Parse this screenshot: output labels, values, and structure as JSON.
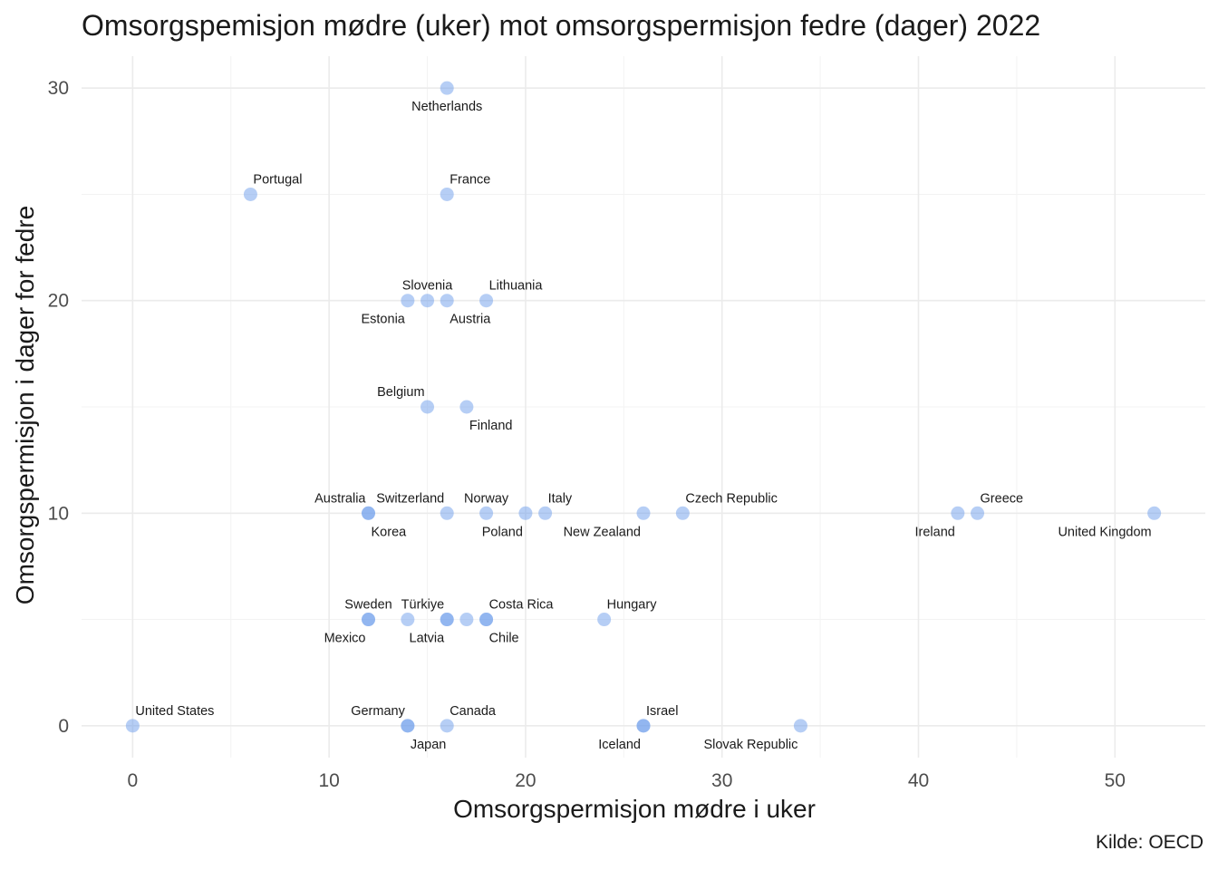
{
  "chart_data": {
    "type": "scatter",
    "title": "Omsorgspemisjon mødre (uker) mot omsorgspermisjon fedre (dager) 2022",
    "xlabel": "Omsorgspermisjon mødre i uker",
    "ylabel": "Omsorgspermisjon i dager for fedre",
    "caption": "Kilde: OECD",
    "xlim": [
      -2.6,
      54.6
    ],
    "ylim": [
      -1.5,
      31.5
    ],
    "xticks": [
      0,
      10,
      20,
      30,
      40,
      50
    ],
    "yticks": [
      0,
      10,
      20,
      30
    ],
    "grid": true,
    "point_color": "#6d9eeb",
    "points": [
      {
        "label": "Netherlands",
        "x": 16,
        "y": 30,
        "pos": "below"
      },
      {
        "label": "Portugal",
        "x": 6,
        "y": 25,
        "pos": "above-right"
      },
      {
        "label": "France",
        "x": 16,
        "y": 25,
        "pos": "above-right"
      },
      {
        "label": "Slovenia",
        "x": 15,
        "y": 20,
        "pos": "above"
      },
      {
        "label": "Estonia",
        "x": 14,
        "y": 20,
        "pos": "below-left"
      },
      {
        "label": "Austria",
        "x": 16,
        "y": 20,
        "pos": "below-right"
      },
      {
        "label": "Lithuania",
        "x": 18,
        "y": 20,
        "pos": "above-right"
      },
      {
        "label": "Belgium",
        "x": 15,
        "y": 15,
        "pos": "above-left"
      },
      {
        "label": "Finland",
        "x": 17,
        "y": 15,
        "pos": "below-right"
      },
      {
        "label": "Australia",
        "x": 12,
        "y": 10,
        "pos": "above-left"
      },
      {
        "label": "Korea",
        "x": 12,
        "y": 10,
        "pos": "below-right"
      },
      {
        "label": "Switzerland",
        "x": 16,
        "y": 10,
        "pos": "above-left"
      },
      {
        "label": "Norway",
        "x": 18,
        "y": 10,
        "pos": "above"
      },
      {
        "label": "Poland",
        "x": 20,
        "y": 10,
        "pos": "below-left"
      },
      {
        "label": "Italy",
        "x": 21,
        "y": 10,
        "pos": "above-right"
      },
      {
        "label": "New Zealand",
        "x": 26,
        "y": 10,
        "pos": "below-left"
      },
      {
        "label": "Czech Republic",
        "x": 28,
        "y": 10,
        "pos": "above-right"
      },
      {
        "label": "Ireland",
        "x": 42,
        "y": 10,
        "pos": "below-left"
      },
      {
        "label": "Greece",
        "x": 43,
        "y": 10,
        "pos": "above-right"
      },
      {
        "label": "United Kingdom",
        "x": 52,
        "y": 10,
        "pos": "below-left"
      },
      {
        "label": "Sweden",
        "x": 12,
        "y": 5,
        "pos": "above"
      },
      {
        "label": "Mexico",
        "x": 12,
        "y": 5,
        "pos": "below-left"
      },
      {
        "label": "",
        "x": 14,
        "y": 5,
        "pos": "none"
      },
      {
        "label": "Türkiye",
        "x": 16,
        "y": 5,
        "pos": "above-left"
      },
      {
        "label": "Latvia",
        "x": 16,
        "y": 5,
        "pos": "below-left"
      },
      {
        "label": "",
        "x": 17,
        "y": 5,
        "pos": "none"
      },
      {
        "label": "Costa Rica",
        "x": 18,
        "y": 5,
        "pos": "above-right"
      },
      {
        "label": "Chile",
        "x": 18,
        "y": 5,
        "pos": "below-right"
      },
      {
        "label": "Hungary",
        "x": 24,
        "y": 5,
        "pos": "above-right"
      },
      {
        "label": "United States",
        "x": 0,
        "y": 0,
        "pos": "above-right"
      },
      {
        "label": "Germany",
        "x": 14,
        "y": 0,
        "pos": "above-left"
      },
      {
        "label": "Japan",
        "x": 14,
        "y": 0,
        "pos": "below-right"
      },
      {
        "label": "Canada",
        "x": 16,
        "y": 0,
        "pos": "above-right"
      },
      {
        "label": "Israel",
        "x": 26,
        "y": 0,
        "pos": "above-right"
      },
      {
        "label": "Iceland",
        "x": 26,
        "y": 0,
        "pos": "below-left"
      },
      {
        "label": "Slovak Republic",
        "x": 34,
        "y": 0,
        "pos": "below-left"
      }
    ]
  }
}
